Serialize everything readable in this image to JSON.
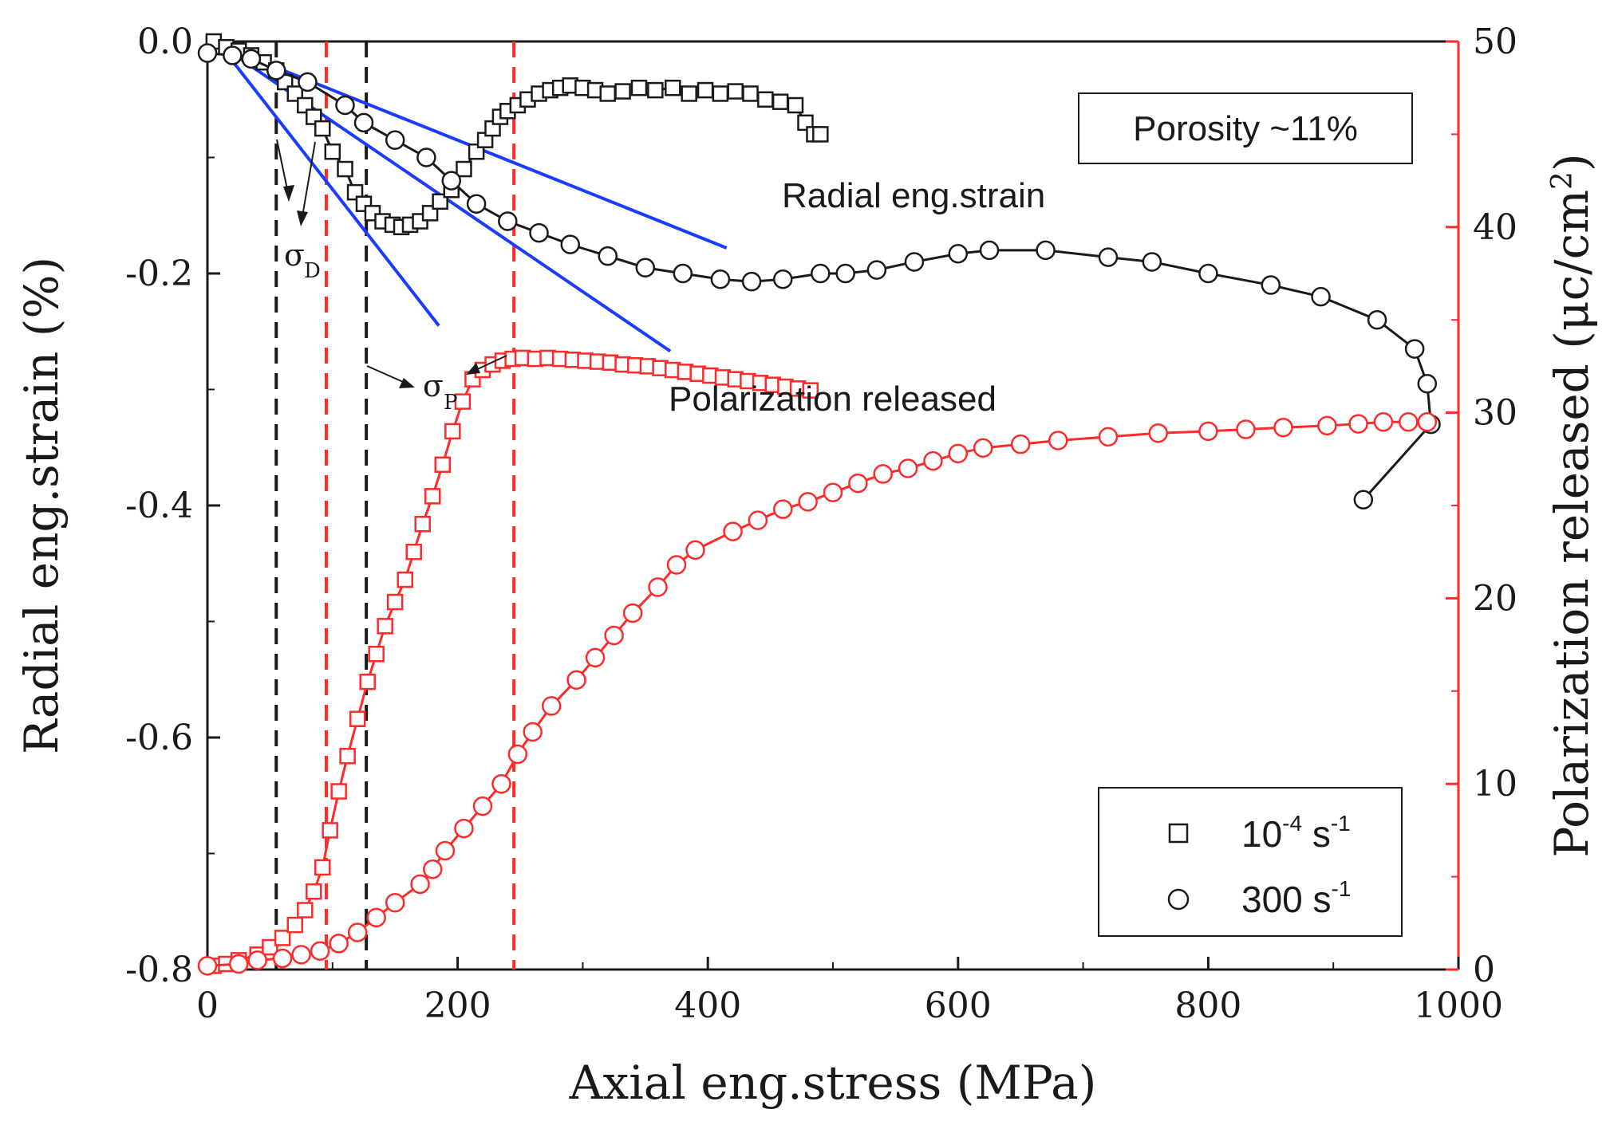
{
  "chart_data": {
    "type": "scatter",
    "title": "",
    "xlabel": "Axial eng.stress (MPa)",
    "ylabel_left": "Radial eng.strain (%)",
    "ylabel_right": "Polarization released (μc/cm²)",
    "ylabel_right_parts": {
      "main": "Polarization released (μc/cm",
      "sup": "2",
      "close": ")"
    },
    "xlim": [
      0,
      1000
    ],
    "ylim_left": [
      -0.8,
      0.0
    ],
    "ylim_right": [
      0,
      50
    ],
    "x_ticks": [
      0,
      200,
      400,
      600,
      800,
      1000
    ],
    "x_tick_labels": [
      "0",
      "200",
      "400",
      "600",
      "800",
      "1000"
    ],
    "y_left_ticks": [
      0.0,
      -0.2,
      -0.4,
      -0.6,
      -0.8
    ],
    "y_left_tick_labels": [
      "0.0",
      "-0.2",
      "-0.4",
      "-0.6",
      "-0.8"
    ],
    "y_right_ticks": [
      0,
      10,
      20,
      30,
      40,
      50
    ],
    "y_right_tick_labels": [
      "0",
      "10",
      "20",
      "30",
      "40",
      "50"
    ],
    "colors": {
      "strain": "#1a1a1a",
      "polarization": "#ff2a2a",
      "tangent": "#1a3cff",
      "axis": "#1a1a1a",
      "right_axis": "#ff2a2a"
    },
    "series": [
      {
        "name": "Radial strain, 10^-4 s^-1",
        "axis": "left",
        "marker": "square",
        "color": "#1a1a1a",
        "x": [
          5,
          15,
          25,
          35,
          45,
          55,
          62,
          70,
          78,
          85,
          92,
          100,
          110,
          118,
          125,
          132,
          140,
          148,
          155,
          162,
          170,
          178,
          186,
          195,
          205,
          215,
          222,
          228,
          234,
          240,
          248,
          256,
          265,
          274,
          282,
          290,
          300,
          310,
          320,
          332,
          345,
          358,
          372,
          385,
          398,
          410,
          422,
          434,
          446,
          458,
          470,
          478,
          485,
          490
        ],
        "y": [
          0.0,
          -0.005,
          -0.008,
          -0.012,
          -0.018,
          -0.025,
          -0.035,
          -0.045,
          -0.055,
          -0.065,
          -0.075,
          -0.095,
          -0.11,
          -0.13,
          -0.14,
          -0.148,
          -0.155,
          -0.158,
          -0.16,
          -0.158,
          -0.155,
          -0.148,
          -0.138,
          -0.128,
          -0.11,
          -0.095,
          -0.085,
          -0.075,
          -0.065,
          -0.06,
          -0.055,
          -0.05,
          -0.045,
          -0.042,
          -0.04,
          -0.038,
          -0.04,
          -0.042,
          -0.045,
          -0.043,
          -0.04,
          -0.042,
          -0.04,
          -0.045,
          -0.042,
          -0.045,
          -0.043,
          -0.045,
          -0.05,
          -0.052,
          -0.055,
          -0.07,
          -0.08,
          -0.08
        ]
      },
      {
        "name": "Radial strain, 300 s^-1",
        "axis": "left",
        "marker": "circle",
        "color": "#1a1a1a",
        "x": [
          0,
          20,
          35,
          55,
          80,
          110,
          125,
          150,
          175,
          195,
          215,
          240,
          265,
          290,
          320,
          350,
          380,
          410,
          435,
          460,
          490,
          510,
          535,
          565,
          600,
          625,
          670,
          720,
          755,
          800,
          850,
          890,
          935,
          965,
          975,
          978,
          924
        ],
        "y": [
          -0.01,
          -0.012,
          -0.015,
          -0.025,
          -0.035,
          -0.055,
          -0.07,
          -0.085,
          -0.1,
          -0.12,
          -0.14,
          -0.155,
          -0.165,
          -0.175,
          -0.185,
          -0.195,
          -0.2,
          -0.205,
          -0.207,
          -0.205,
          -0.2,
          -0.2,
          -0.197,
          -0.19,
          -0.183,
          -0.18,
          -0.18,
          -0.186,
          -0.19,
          -0.2,
          -0.21,
          -0.22,
          -0.24,
          -0.265,
          -0.295,
          -0.33,
          -0.395
        ]
      },
      {
        "name": "Polarization, 10^-4 s^-1",
        "axis": "right",
        "marker": "square",
        "color": "#ff2a2a",
        "x": [
          5,
          15,
          25,
          40,
          50,
          60,
          70,
          78,
          85,
          92,
          98,
          105,
          112,
          120,
          128,
          135,
          142,
          150,
          158,
          165,
          172,
          180,
          188,
          196,
          204,
          212,
          220,
          228,
          236,
          244,
          252,
          262,
          272,
          282,
          292,
          302,
          312,
          322,
          332,
          342,
          352,
          362,
          372,
          382,
          392,
          402,
          412,
          422,
          432,
          442,
          452,
          462,
          472,
          482
        ],
        "y": [
          0.2,
          0.3,
          0.5,
          0.8,
          1.2,
          1.7,
          2.4,
          3.2,
          4.2,
          5.5,
          7.5,
          9.6,
          11.5,
          13.5,
          15.5,
          17.0,
          18.5,
          19.8,
          21.0,
          22.5,
          24.0,
          25.5,
          27.2,
          29.0,
          30.6,
          31.8,
          32.3,
          32.6,
          32.8,
          32.9,
          32.95,
          32.9,
          32.95,
          32.9,
          32.85,
          32.8,
          32.75,
          32.7,
          32.6,
          32.55,
          32.5,
          32.4,
          32.3,
          32.2,
          32.1,
          32.0,
          31.9,
          31.8,
          31.7,
          31.6,
          31.5,
          31.4,
          31.3,
          31.2
        ]
      },
      {
        "name": "Polarization, 300 s^-1",
        "axis": "right",
        "marker": "circle",
        "color": "#ff2a2a",
        "x": [
          0,
          25,
          40,
          60,
          75,
          90,
          105,
          120,
          135,
          150,
          170,
          180,
          190,
          205,
          220,
          235,
          248,
          260,
          275,
          295,
          310,
          325,
          340,
          360,
          375,
          390,
          420,
          440,
          460,
          480,
          500,
          520,
          540,
          560,
          580,
          600,
          620,
          650,
          680,
          720,
          760,
          800,
          830,
          860,
          895,
          920,
          940,
          960,
          975
        ],
        "y": [
          0.2,
          0.3,
          0.5,
          0.6,
          0.8,
          1.0,
          1.4,
          2.0,
          2.8,
          3.6,
          4.6,
          5.4,
          6.4,
          7.6,
          8.8,
          10.0,
          11.6,
          12.8,
          14.2,
          15.6,
          16.8,
          18.0,
          19.2,
          20.6,
          21.8,
          22.6,
          23.6,
          24.2,
          24.8,
          25.2,
          25.7,
          26.2,
          26.7,
          27.0,
          27.4,
          27.8,
          28.1,
          28.3,
          28.5,
          28.7,
          28.9,
          29.0,
          29.1,
          29.2,
          29.3,
          29.4,
          29.5,
          29.5,
          29.5
        ]
      }
    ],
    "tangent_lines": [
      {
        "x": [
          10,
          415
        ],
        "y": [
          -0.003,
          -0.178
        ]
      },
      {
        "x": [
          10,
          185
        ],
        "y": [
          -0.003,
          -0.245
        ]
      },
      {
        "x": [
          10,
          370
        ],
        "y": [
          -0.003,
          -0.267
        ]
      }
    ],
    "black_dashed_x": [
      55,
      127
    ],
    "red_dashed_x": [
      95,
      245
    ],
    "annotations": {
      "radial_label": "Radial eng.strain",
      "polarization_label": "Polarization released",
      "porosity_label": "Porosity ~11%",
      "sigma_d": {
        "symbol": "σ",
        "sub": "D"
      },
      "sigma_p": {
        "symbol": "σ",
        "sub": "P"
      }
    },
    "legend": {
      "position": "bottom-right",
      "entries": [
        {
          "marker": "square",
          "base": "10",
          "exp": "-4",
          "unit": " s",
          "unit_exp": "-1"
        },
        {
          "marker": "circle",
          "base": "300",
          "exp": "",
          "unit": " s",
          "unit_exp": "-1"
        }
      ]
    }
  }
}
